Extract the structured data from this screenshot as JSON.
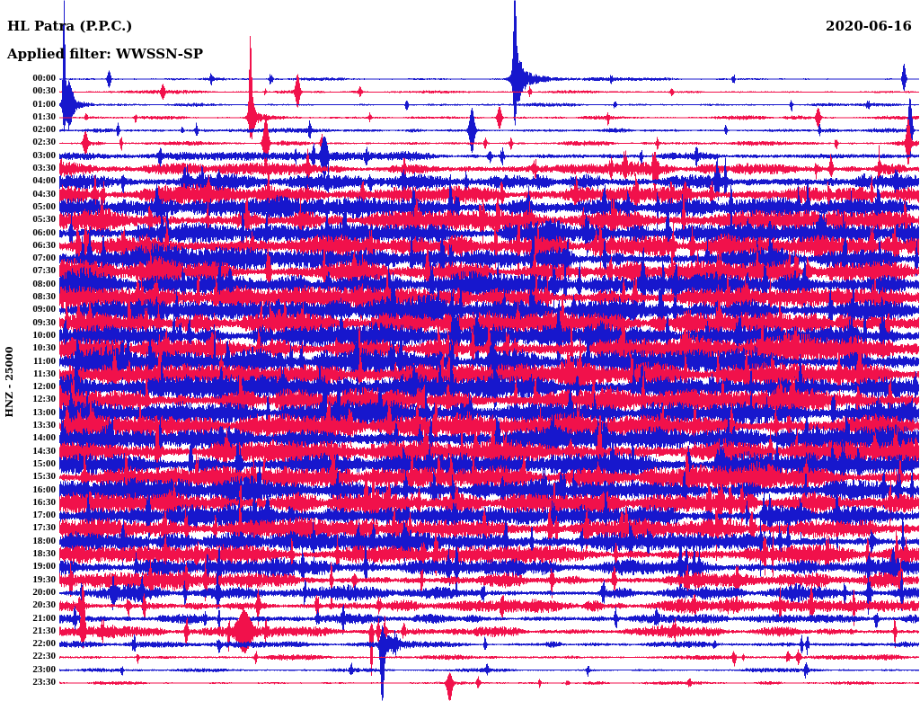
{
  "header": {
    "station": "HL Patra (P.P.C.)",
    "date": "2020-06-16",
    "filter": "Applied filter: WWSSN-SP"
  },
  "side_label": "HNZ - 25000",
  "colors": {
    "trace_blue": "#1717cd",
    "trace_red": "#f1114b",
    "text": "#000000",
    "background": "#ffffff"
  },
  "chart_data": {
    "type": "line",
    "title": "HL Patra (P.P.C.) helicorder, HNZ channel, scale 25000, WWSSN-SP filter, 2020-06-16",
    "row_minutes": 30,
    "x_axis": "30 minutes of seismic signal per row",
    "y_axis": "time of day, one row per half hour",
    "traces": [
      {
        "label": "00:00",
        "color": "blue",
        "activity": 0.1
      },
      {
        "label": "00:30",
        "color": "red",
        "activity": 0.09
      },
      {
        "label": "01:00",
        "color": "blue",
        "activity": 0.1
      },
      {
        "label": "01:30",
        "color": "red",
        "activity": 0.13
      },
      {
        "label": "02:00",
        "color": "blue",
        "activity": 0.18
      },
      {
        "label": "02:30",
        "color": "red",
        "activity": 0.2
      },
      {
        "label": "03:00",
        "color": "blue",
        "activity": 0.35
      },
      {
        "label": "03:30",
        "color": "red",
        "activity": 0.52
      },
      {
        "label": "04:00",
        "color": "blue",
        "activity": 0.68
      },
      {
        "label": "04:30",
        "color": "red",
        "activity": 0.75
      },
      {
        "label": "05:00",
        "color": "blue",
        "activity": 0.82
      },
      {
        "label": "05:30",
        "color": "red",
        "activity": 0.85
      },
      {
        "label": "06:00",
        "color": "blue",
        "activity": 0.88
      },
      {
        "label": "06:30",
        "color": "red",
        "activity": 0.89
      },
      {
        "label": "07:00",
        "color": "blue",
        "activity": 0.9
      },
      {
        "label": "07:30",
        "color": "red",
        "activity": 0.91
      },
      {
        "label": "08:00",
        "color": "blue",
        "activity": 0.92
      },
      {
        "label": "08:30",
        "color": "red",
        "activity": 0.93
      },
      {
        "label": "09:00",
        "color": "blue",
        "activity": 0.94
      },
      {
        "label": "09:30",
        "color": "red",
        "activity": 0.95
      },
      {
        "label": "10:00",
        "color": "blue",
        "activity": 0.96
      },
      {
        "label": "10:30",
        "color": "red",
        "activity": 0.97
      },
      {
        "label": "11:00",
        "color": "blue",
        "activity": 0.98
      },
      {
        "label": "11:30",
        "color": "red",
        "activity": 0.98
      },
      {
        "label": "12:00",
        "color": "blue",
        "activity": 0.97
      },
      {
        "label": "12:30",
        "color": "red",
        "activity": 0.97
      },
      {
        "label": "13:00",
        "color": "blue",
        "activity": 0.96
      },
      {
        "label": "13:30",
        "color": "red",
        "activity": 0.96
      },
      {
        "label": "14:00",
        "color": "blue",
        "activity": 0.95
      },
      {
        "label": "14:30",
        "color": "red",
        "activity": 0.94
      },
      {
        "label": "15:00",
        "color": "blue",
        "activity": 0.93
      },
      {
        "label": "15:30",
        "color": "red",
        "activity": 0.92
      },
      {
        "label": "16:00",
        "color": "blue",
        "activity": 0.9
      },
      {
        "label": "16:30",
        "color": "red",
        "activity": 0.88
      },
      {
        "label": "17:00",
        "color": "blue",
        "activity": 0.86
      },
      {
        "label": "17:30",
        "color": "red",
        "activity": 0.84
      },
      {
        "label": "18:00",
        "color": "blue",
        "activity": 0.8
      },
      {
        "label": "18:30",
        "color": "red",
        "activity": 0.76
      },
      {
        "label": "19:00",
        "color": "blue",
        "activity": 0.7
      },
      {
        "label": "19:30",
        "color": "red",
        "activity": 0.66
      },
      {
        "label": "20:00",
        "color": "blue",
        "activity": 0.58
      },
      {
        "label": "20:30",
        "color": "red",
        "activity": 0.56
      },
      {
        "label": "21:00",
        "color": "blue",
        "activity": 0.4
      },
      {
        "label": "21:30",
        "color": "red",
        "activity": 0.46
      },
      {
        "label": "22:00",
        "color": "blue",
        "activity": 0.28
      },
      {
        "label": "22:30",
        "color": "red",
        "activity": 0.2
      },
      {
        "label": "23:00",
        "color": "blue",
        "activity": 0.14
      },
      {
        "label": "23:30",
        "color": "red",
        "activity": 0.11
      }
    ],
    "events": [
      {
        "trace": 0,
        "x_frac": 0.0575,
        "amp_up": 9,
        "amp_down": 9,
        "w": 2
      },
      {
        "trace": 0,
        "x_frac": 0.53,
        "amp_up": 88,
        "amp_down": 40,
        "w": 2
      },
      {
        "trace": 0,
        "x_frac": 0.533,
        "amp_up": 13,
        "amp_down": 13,
        "w": 7,
        "coda_amp": 12,
        "coda_w": 22
      },
      {
        "trace": 0,
        "x_frac": 0.983,
        "amp_up": 17,
        "amp_down": 13,
        "w": 2
      },
      {
        "trace": 1,
        "x_frac": 0.12,
        "amp_up": 7,
        "amp_down": 7,
        "w": 2
      },
      {
        "trace": 1,
        "x_frac": 0.277,
        "amp_up": 19,
        "amp_down": 17,
        "w": 2.5
      },
      {
        "trace": 2,
        "x_frac": 0.005,
        "amp_up": 112,
        "amp_down": 20,
        "w": 1.4
      },
      {
        "trace": 2,
        "x_frac": 0.01,
        "amp_up": 22,
        "amp_down": 20,
        "w": 5.5,
        "coda_amp": 7,
        "coda_w": 16
      },
      {
        "trace": 3,
        "x_frac": 0.222,
        "amp_up": 80,
        "amp_down": 12,
        "w": 1.6
      },
      {
        "trace": 3,
        "x_frac": 0.2235,
        "amp_up": 14,
        "amp_down": 12,
        "w": 4,
        "coda_amp": 8,
        "coda_w": 10
      },
      {
        "trace": 3,
        "x_frac": 0.512,
        "amp_up": 12,
        "amp_down": 12,
        "w": 2.4
      },
      {
        "trace": 3,
        "x_frac": 0.883,
        "amp_up": 10,
        "amp_down": 10,
        "w": 2.4
      },
      {
        "trace": 4,
        "x_frac": 0.48,
        "amp_up": 24,
        "amp_down": 24,
        "w": 3
      },
      {
        "trace": 4,
        "x_frac": 0.99,
        "amp_up": 36,
        "amp_down": 28,
        "w": 2.5
      },
      {
        "trace": 5,
        "x_frac": 0.03,
        "amp_up": 12,
        "amp_down": 12,
        "w": 2.4
      },
      {
        "trace": 5,
        "x_frac": 0.24,
        "amp_up": 28,
        "amp_down": 26,
        "w": 3
      },
      {
        "trace": 5,
        "x_frac": 0.988,
        "amp_up": 25,
        "amp_down": 22,
        "w": 2.4
      },
      {
        "trace": 6,
        "x_frac": 0.308,
        "amp_up": 20,
        "amp_down": 20,
        "w": 3.5
      },
      {
        "trace": 43,
        "x_frac": 0.027,
        "amp_up": 54,
        "amp_down": 14,
        "w": 2.2
      },
      {
        "trace": 43,
        "x_frac": 0.215,
        "amp_up": 20,
        "amp_down": 20,
        "w": 8
      },
      {
        "trace": 43,
        "x_frac": 0.363,
        "amp_up": 8,
        "amp_down": 48,
        "w": 1.8
      },
      {
        "trace": 44,
        "x_frac": 0.3755,
        "amp_up": 14,
        "amp_down": 62,
        "w": 2.4,
        "coda_amp": 10,
        "coda_w": 12
      },
      {
        "trace": 47,
        "x_frac": 0.454,
        "amp_up": 10,
        "amp_down": 20,
        "w": 3
      }
    ]
  }
}
